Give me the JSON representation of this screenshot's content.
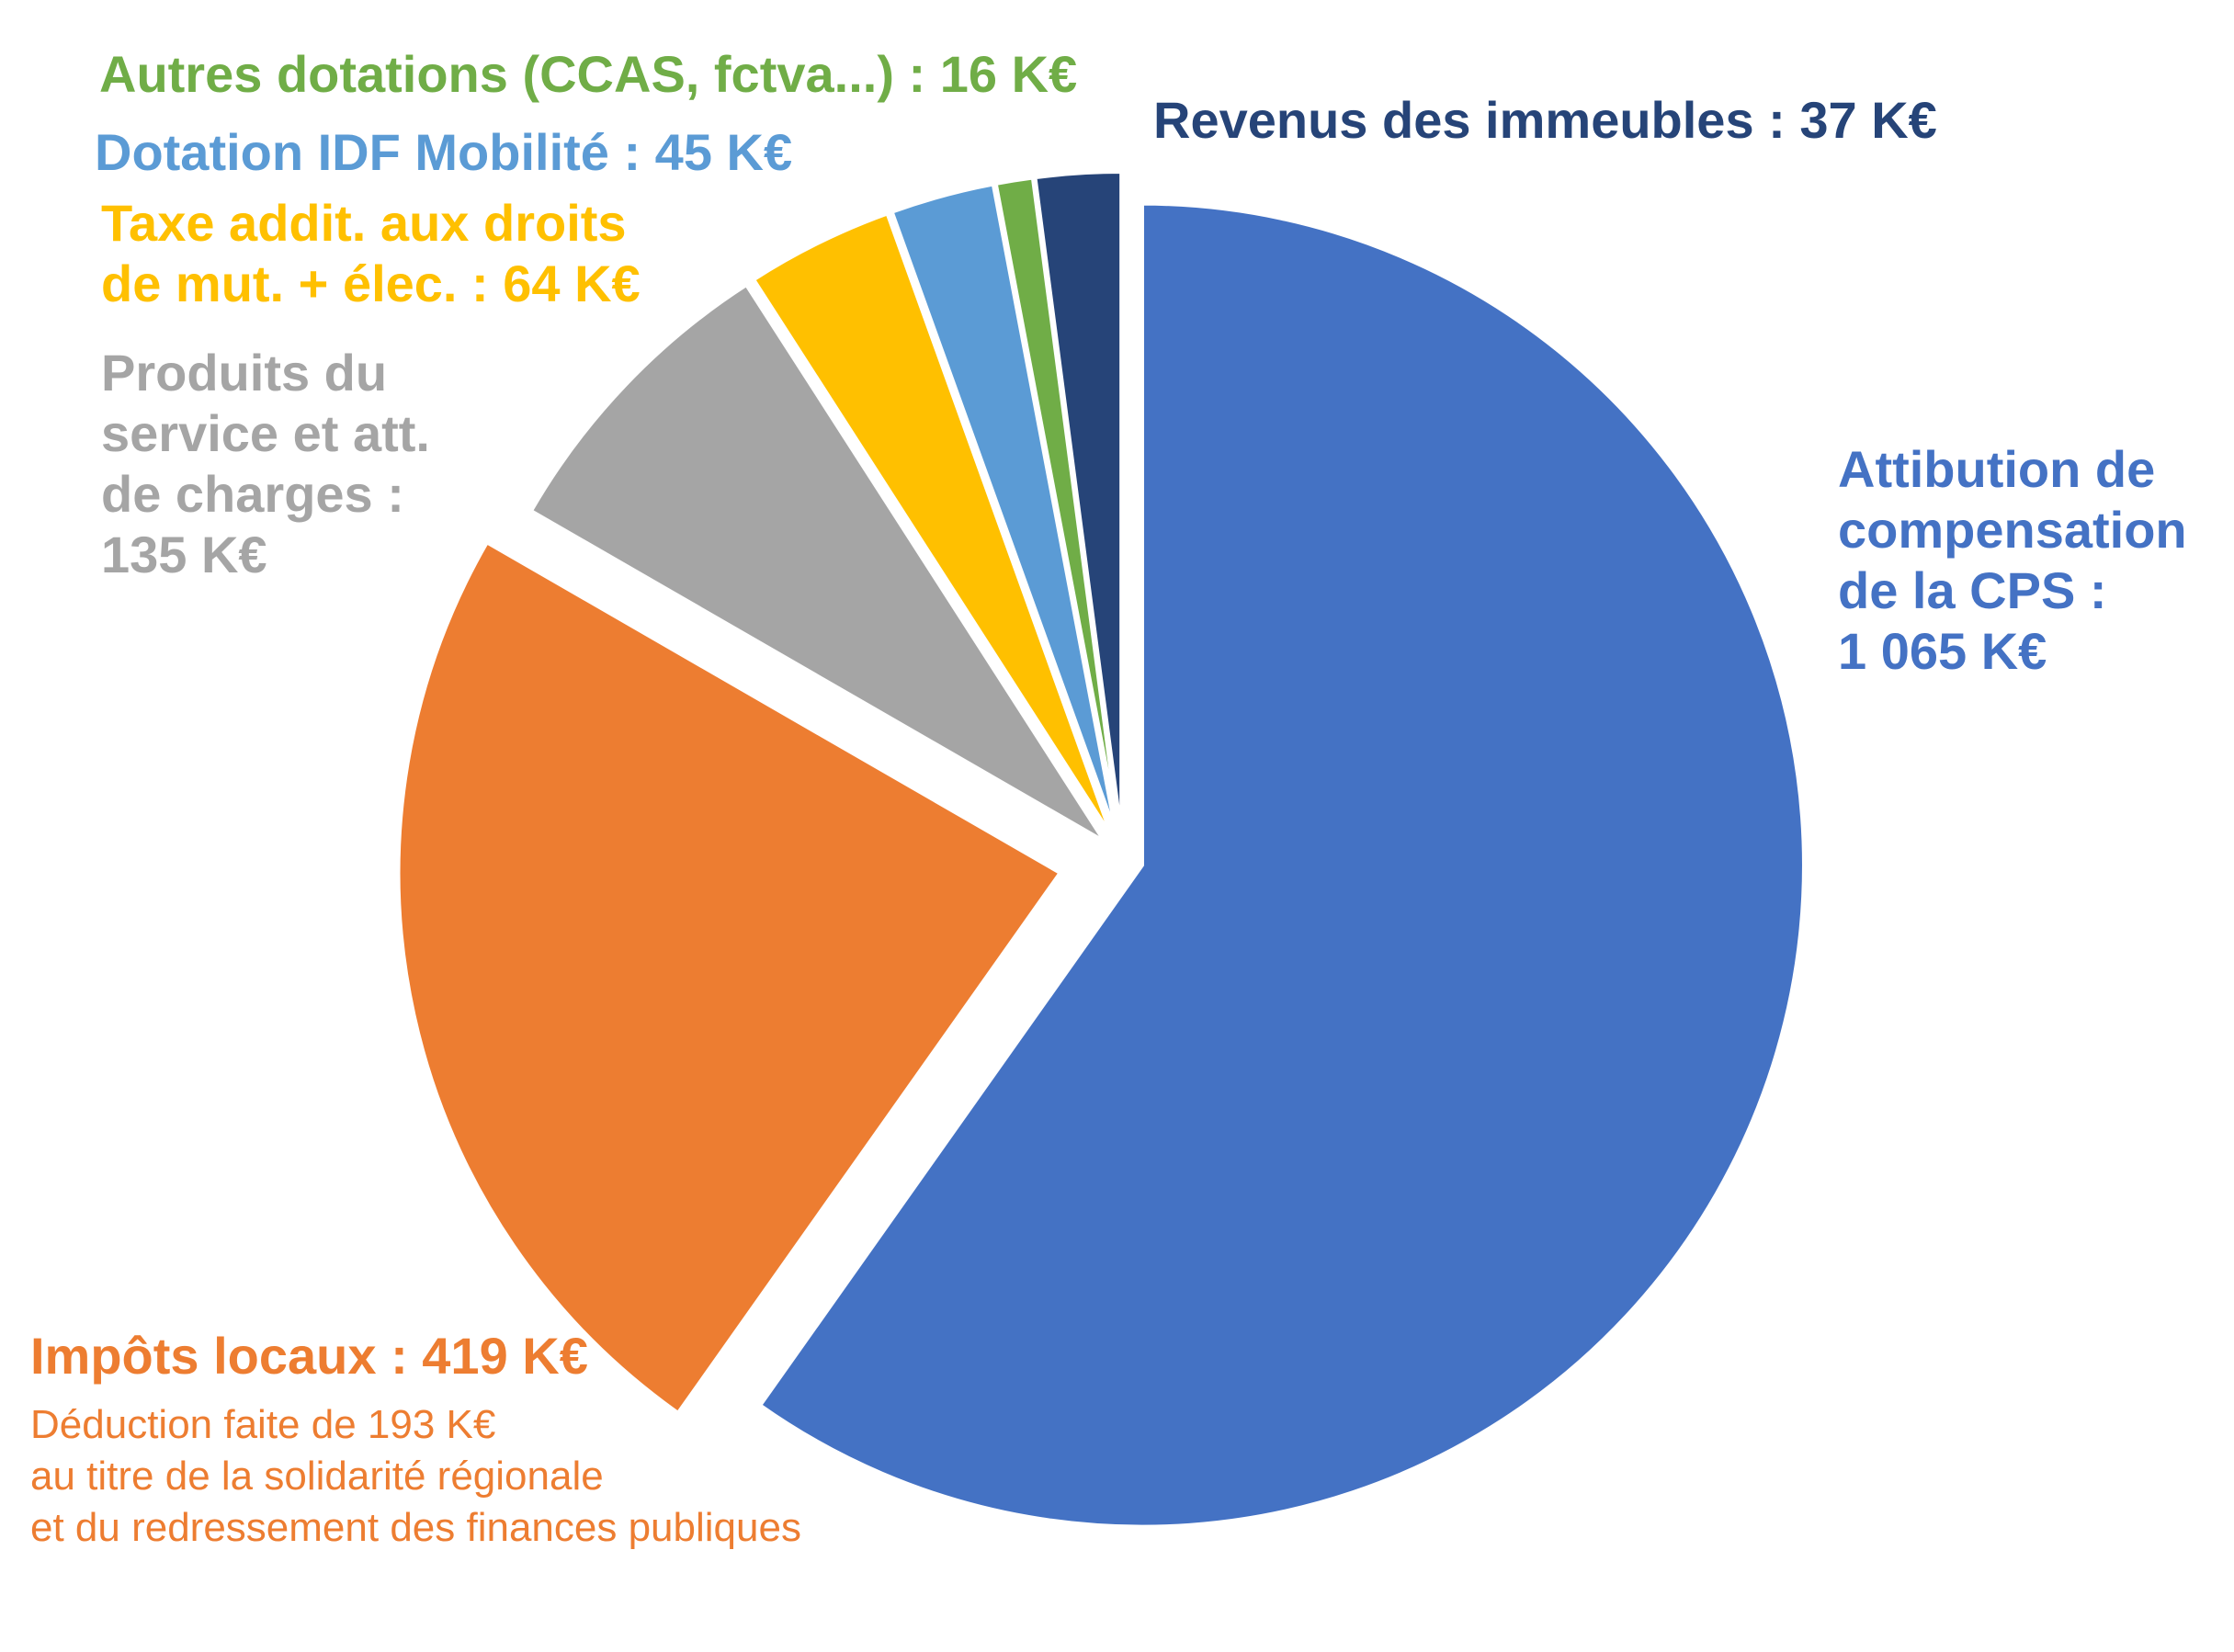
{
  "chart_data": {
    "type": "pie",
    "unit": "K€",
    "slices": [
      {
        "name": "Attibution de compensation de la CPS",
        "value": 1065,
        "color": "#4472C4",
        "label_lines": [
          "Attibution de",
          "compensation",
          "de la CPS :",
          "1 065 K€"
        ]
      },
      {
        "name": "Impôts locaux",
        "value": 419,
        "color": "#ED7D31",
        "label_lines": [
          "Impôts locaux : 419 K€"
        ],
        "note_lines": [
          "Déduction faite de 193 K€",
          "au titre de la solidarité régionale",
          "et du redressement des finances publiques"
        ]
      },
      {
        "name": "Produits du service et att. de charges",
        "value": 135,
        "color": "#A5A5A5",
        "label_lines": [
          "Produits du",
          "service et att.",
          "de charges :",
          "135 K€"
        ]
      },
      {
        "name": "Taxe addit. aux droits de mut. + élec.",
        "value": 64,
        "color": "#FFC000",
        "label_lines": [
          "Taxe addit. aux droits",
          "de mut. + élec. : 64 K€"
        ]
      },
      {
        "name": "Dotation IDF Mobilité",
        "value": 45,
        "color": "#5B9BD5",
        "label_lines": [
          "Dotation IDF Mobilité : 45 K€"
        ]
      },
      {
        "name": "Autres dotations (CCAS, fctva...)",
        "value": 16,
        "color": "#70AD47",
        "label_lines": [
          "Autres dotations (CCAS, fctva...) : 16 K€"
        ]
      },
      {
        "name": "Revenus des immeubles",
        "value": 37,
        "color": "#264478",
        "label_lines": [
          "Revenus des immeubles : 37 K€"
        ]
      }
    ]
  }
}
